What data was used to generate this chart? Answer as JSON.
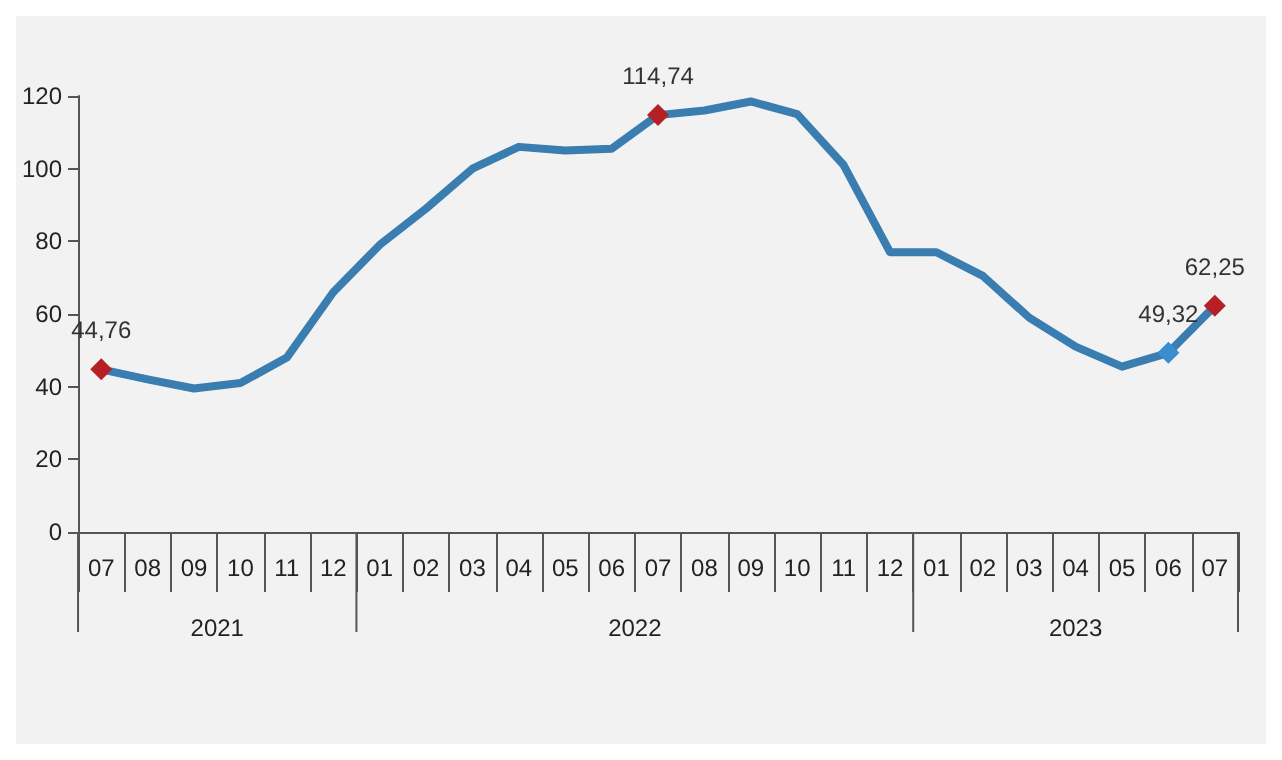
{
  "chart_data": {
    "type": "line",
    "categories": [
      "07",
      "08",
      "09",
      "10",
      "11",
      "12",
      "01",
      "02",
      "03",
      "04",
      "05",
      "06",
      "07",
      "08",
      "09",
      "10",
      "11",
      "12",
      "01",
      "02",
      "03",
      "04",
      "05",
      "06",
      "07"
    ],
    "annotations": [
      "2021",
      "2022",
      "2023"
    ],
    "series": [
      {
        "color": "#3a7db0",
        "values": [
          44.76,
          42,
          39.5,
          41,
          48,
          66,
          79,
          89,
          100,
          106,
          105,
          105.5,
          114.74,
          116,
          118.5,
          115,
          101,
          77,
          77,
          70.5,
          59,
          51,
          45.5,
          49.32,
          62.25
        ],
        "value_labels": [
          "44,76",
          null,
          null,
          null,
          null,
          null,
          null,
          null,
          null,
          null,
          null,
          null,
          "114,74",
          null,
          null,
          null,
          null,
          null,
          null,
          null,
          null,
          null,
          null,
          "49,32",
          "62,25"
        ],
        "colors": [
          "#b52025",
          null,
          null,
          null,
          null,
          null,
          null,
          null,
          null,
          null,
          null,
          null,
          "#b52025",
          null,
          null,
          null,
          null,
          null,
          null,
          null,
          null,
          null,
          null,
          "#3a8ed0",
          "#b52025"
        ]
      }
    ],
    "ylim": [
      0,
      120
    ],
    "yticks": [
      0,
      20,
      40,
      60,
      80,
      100,
      120
    ],
    "grid": false,
    "line_style": "solid"
  }
}
